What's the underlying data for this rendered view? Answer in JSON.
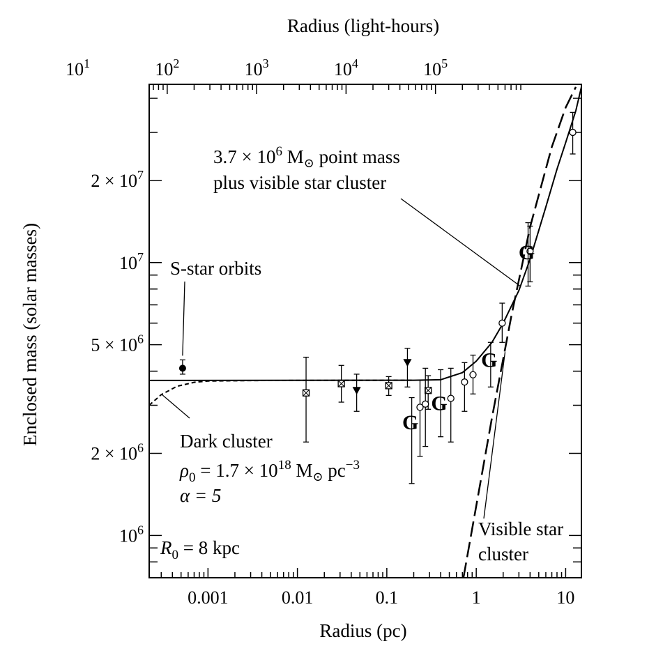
{
  "chart_data": {
    "type": "scatter",
    "x_bottom": {
      "label": "Radius (pc)",
      "scale": "log",
      "range": [
        0.00022,
        15
      ],
      "ticks": [
        {
          "value": 0.001,
          "label": "0.001"
        },
        {
          "value": 0.01,
          "label": "0.01"
        },
        {
          "value": 0.1,
          "label": "0.1"
        },
        {
          "value": 1,
          "label": "1"
        },
        {
          "value": 10,
          "label": "10"
        }
      ]
    },
    "x_top": {
      "label": "Radius (light-hours)",
      "scale": "log",
      "ticks": [
        {
          "value": 10,
          "base": "10",
          "exp": "1"
        },
        {
          "value": 100,
          "base": "10",
          "exp": "2"
        },
        {
          "value": 1000,
          "base": "10",
          "exp": "3"
        },
        {
          "value": 10000,
          "base": "10",
          "exp": "4"
        },
        {
          "value": 100000,
          "base": "10",
          "exp": "5"
        }
      ]
    },
    "y": {
      "label": "Enclosed mass (solar masses)",
      "scale": "log",
      "range": [
        700000,
        45000000
      ],
      "ticks": [
        {
          "value": 1000000,
          "pre": "10",
          "exp": "6"
        },
        {
          "value": 2000000,
          "pre": "2 × 10",
          "exp": "6"
        },
        {
          "value": 5000000,
          "pre": "5 × 10",
          "exp": "6"
        },
        {
          "value": 10000000,
          "pre": "10",
          "exp": "7"
        },
        {
          "value": 20000000,
          "pre": "2 × 10",
          "exp": "7"
        }
      ]
    },
    "series": [
      {
        "marker": "filled-circle",
        "points": [
          {
            "x": 0.00052,
            "y": 4100000,
            "ylo": 3900000,
            "yhi": 4400000
          }
        ]
      },
      {
        "marker": "boxed-x",
        "points": [
          {
            "x": 0.0125,
            "y": 3330000,
            "ylo": 2200000,
            "yhi": 4500000
          },
          {
            "x": 0.031,
            "y": 3600000,
            "ylo": 3080000,
            "yhi": 4200000
          },
          {
            "x": 0.105,
            "y": 3540000,
            "ylo": 3260000,
            "yhi": 3820000
          },
          {
            "x": 0.29,
            "y": 3400000,
            "ylo": 2900000,
            "yhi": 3850000
          }
        ]
      },
      {
        "marker": "filled-triangle-down",
        "points": [
          {
            "x": 0.046,
            "y": 3400000,
            "ylo": 2850000,
            "yhi": 3900000
          },
          {
            "x": 0.17,
            "y": 4300000,
            "ylo": 3500000,
            "yhi": 4850000
          }
        ]
      },
      {
        "marker": "open-circle",
        "points": [
          {
            "x": 0.235,
            "y": 2950000,
            "ylo": 1950000,
            "yhi": 3700000
          },
          {
            "x": 0.27,
            "y": 3030000,
            "ylo": 2120000,
            "yhi": 4100000
          },
          {
            "x": 0.52,
            "y": 3180000,
            "ylo": 2200000,
            "yhi": 4100000
          },
          {
            "x": 0.74,
            "y": 3650000,
            "ylo": 2850000,
            "yhi": 4300000
          },
          {
            "x": 0.92,
            "y": 3880000,
            "ylo": 3300000,
            "yhi": 4580000
          },
          {
            "x": 1.95,
            "y": 6000000,
            "ylo": 5100000,
            "yhi": 7100000
          },
          {
            "x": 4.0,
            "y": 11000000,
            "ylo": 8500000,
            "yhi": 13600000
          },
          {
            "x": 12.0,
            "y": 30000000,
            "ylo": 25000000,
            "yhi": 35500000
          }
        ]
      },
      {
        "marker": "G",
        "points": [
          {
            "x": 0.19,
            "y": 2600000,
            "ylo": 1550000,
            "yhi": 3200000
          },
          {
            "x": 0.4,
            "y": 3050000,
            "ylo": 2300000,
            "yhi": 4050000
          },
          {
            "x": 1.45,
            "y": 4400000,
            "ylo": 3500000,
            "yhi": 5100000
          },
          {
            "x": 3.8,
            "y": 10900000,
            "ylo": 8200000,
            "yhi": 14000000
          }
        ]
      }
    ],
    "curves": [
      {
        "style": "solid",
        "points": [
          [
            0.00022,
            3700000
          ],
          [
            0.2,
            3705000
          ],
          [
            0.4,
            3720000
          ],
          [
            0.7,
            3950000
          ],
          [
            1.0,
            4350000
          ],
          [
            1.5,
            5100000
          ],
          [
            2.0,
            6000000
          ],
          [
            3.0,
            7900000
          ],
          [
            4.0,
            10300000
          ],
          [
            6.0,
            16000000
          ],
          [
            8.0,
            22000000
          ],
          [
            10.0,
            27500000
          ],
          [
            13.0,
            36000000
          ],
          [
            15.0,
            44000000
          ]
        ]
      },
      {
        "style": "short-dash",
        "points": [
          [
            0.00022,
            3000000
          ],
          [
            0.0003,
            3280000
          ],
          [
            0.00045,
            3520000
          ],
          [
            0.0007,
            3640000
          ],
          [
            0.001,
            3680000
          ],
          [
            0.003,
            3695000
          ],
          [
            0.01,
            3700000
          ],
          [
            0.2,
            3705000
          ]
        ]
      },
      {
        "style": "long-dash",
        "points": [
          [
            0.72,
            700000
          ],
          [
            1.5,
            2700000
          ],
          [
            2.5,
            6500000
          ],
          [
            4.0,
            13500000
          ],
          [
            7.0,
            26500000
          ],
          [
            10.0,
            37000000
          ],
          [
            13.0,
            44000000
          ]
        ]
      }
    ],
    "annotations": {
      "sstar": "S-star orbits",
      "point_mass_line1": {
        "pre": "3.7 × 10",
        "exp": "6",
        "post": " M",
        "post2": " point mass"
      },
      "point_mass_line2": "plus visible star cluster",
      "dark_title": "Dark cluster",
      "dark_rho": {
        "sym": "ρ",
        "sub": "0",
        "pre": " = 1.7 × 10",
        "exp": "18",
        "mid": " M",
        "post": " pc",
        "exp2": "−3"
      },
      "dark_alpha": "α = 5",
      "r0": {
        "sym": "R",
        "sub": "0",
        "post": " = 8 kpc"
      },
      "visible_line1": "Visible star",
      "visible_line2": "cluster",
      "g_glyph": "G"
    }
  }
}
